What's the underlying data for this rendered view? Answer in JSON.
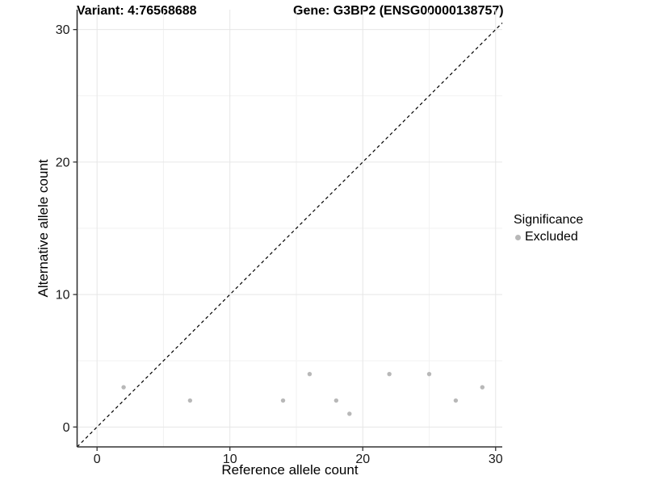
{
  "header": {
    "variant_title": "Variant: 4:76568688",
    "gene_title": "Gene: G3BP2 (ENSG00000138757)"
  },
  "chart_data": {
    "type": "scatter",
    "titles": {
      "left": "Variant: 4:76568688",
      "right": "Gene: G3BP2 (ENSG00000138757)"
    },
    "xlabel": "Reference allele count",
    "ylabel": "Alternative allele count",
    "xlim": [
      -1.5,
      30.5
    ],
    "ylim": [
      -1.5,
      31.5
    ],
    "x_ticks": [
      0,
      10,
      20,
      30
    ],
    "y_ticks": [
      0,
      10,
      20,
      30
    ],
    "x_minor_ticks": [
      5,
      15,
      25
    ],
    "y_minor_ticks": [
      5,
      15,
      25
    ],
    "grid": {
      "major_color": "#e6e6e6",
      "minor_color": "#f2f2f2",
      "on": true
    },
    "axis_color": "#333333",
    "tick_label_color": "#1a1a1a",
    "identity_line": {
      "slope": 1,
      "intercept": 0,
      "style": "dashed",
      "color": "#000000"
    },
    "series": [
      {
        "name": "Excluded",
        "color": "#b8b8b8",
        "points": [
          [
            2,
            3
          ],
          [
            7,
            2
          ],
          [
            14,
            2
          ],
          [
            16,
            4
          ],
          [
            18,
            2
          ],
          [
            19,
            1
          ],
          [
            22,
            4
          ],
          [
            25,
            4
          ],
          [
            27,
            2
          ],
          [
            29,
            3
          ]
        ]
      }
    ],
    "legend": {
      "title": "Significance",
      "position": "right",
      "entries": [
        {
          "label": "Excluded",
          "color": "#b8b8b8"
        }
      ]
    }
  }
}
